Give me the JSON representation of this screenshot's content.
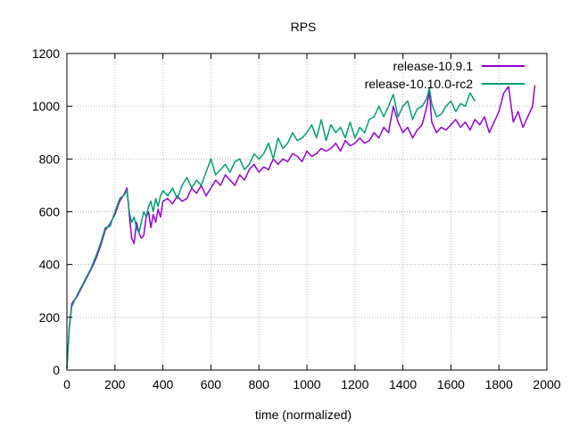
{
  "chart_data": {
    "type": "line",
    "title": "RPS",
    "xlabel": "time (normalized)",
    "ylabel": "",
    "xlim": [
      0,
      2000
    ],
    "ylim": [
      0,
      1200
    ],
    "xticks": [
      0,
      200,
      400,
      600,
      800,
      1000,
      1200,
      1400,
      1600,
      1800,
      2000
    ],
    "yticks": [
      0,
      200,
      400,
      600,
      800,
      1000,
      1200
    ],
    "grid": true,
    "legend_position": "top-right",
    "series": [
      {
        "name": "release-10.9.1",
        "color": "#9400d3",
        "x": [
          0,
          10,
          20,
          30,
          40,
          60,
          80,
          100,
          120,
          140,
          160,
          180,
          200,
          220,
          240,
          250,
          260,
          270,
          280,
          290,
          300,
          310,
          320,
          330,
          340,
          350,
          360,
          370,
          380,
          390,
          400,
          420,
          440,
          460,
          480,
          500,
          520,
          540,
          560,
          580,
          600,
          620,
          640,
          660,
          680,
          700,
          720,
          740,
          760,
          780,
          800,
          820,
          840,
          860,
          880,
          900,
          920,
          940,
          960,
          980,
          1000,
          1020,
          1040,
          1060,
          1080,
          1100,
          1120,
          1140,
          1160,
          1180,
          1200,
          1220,
          1240,
          1260,
          1280,
          1300,
          1320,
          1340,
          1360,
          1380,
          1400,
          1420,
          1440,
          1460,
          1480,
          1500,
          1510,
          1520,
          1540,
          1560,
          1580,
          1600,
          1620,
          1640,
          1660,
          1680,
          1700,
          1720,
          1740,
          1760,
          1780,
          1800,
          1820,
          1840,
          1860,
          1880,
          1900,
          1920,
          1940,
          1950
        ],
        "y": [
          10,
          160,
          250,
          265,
          275,
          310,
          345,
          380,
          420,
          470,
          530,
          555,
          590,
          640,
          670,
          690,
          590,
          500,
          480,
          560,
          520,
          500,
          510,
          580,
          600,
          540,
          590,
          560,
          610,
          580,
          640,
          650,
          630,
          660,
          640,
          650,
          690,
          670,
          700,
          660,
          690,
          720,
          700,
          740,
          720,
          700,
          740,
          720,
          760,
          780,
          750,
          770,
          760,
          800,
          780,
          800,
          790,
          820,
          810,
          790,
          830,
          810,
          820,
          840,
          830,
          840,
          860,
          830,
          870,
          850,
          860,
          880,
          860,
          870,
          900,
          880,
          920,
          900,
          1000,
          940,
          900,
          920,
          880,
          910,
          930,
          1000,
          1060,
          940,
          900,
          920,
          910,
          930,
          950,
          920,
          940,
          910,
          950,
          930,
          960,
          900,
          940,
          980,
          1050,
          1075,
          940,
          980,
          920,
          960,
          1000,
          1080
        ]
      },
      {
        "name": "release-10.10.0-rc2",
        "color": "#009e73",
        "x": [
          0,
          10,
          20,
          30,
          40,
          60,
          80,
          100,
          120,
          140,
          160,
          180,
          200,
          220,
          240,
          250,
          260,
          270,
          280,
          290,
          300,
          310,
          320,
          330,
          340,
          350,
          360,
          370,
          380,
          390,
          400,
          420,
          440,
          460,
          480,
          500,
          520,
          540,
          560,
          580,
          600,
          620,
          640,
          660,
          680,
          700,
          720,
          740,
          760,
          780,
          800,
          820,
          840,
          860,
          880,
          900,
          920,
          940,
          960,
          980,
          1000,
          1020,
          1040,
          1060,
          1080,
          1100,
          1120,
          1140,
          1160,
          1180,
          1200,
          1220,
          1240,
          1260,
          1280,
          1300,
          1320,
          1340,
          1360,
          1380,
          1400,
          1420,
          1440,
          1460,
          1480,
          1500,
          1510,
          1520,
          1540,
          1560,
          1580,
          1600,
          1620,
          1640,
          1660,
          1680,
          1700
        ],
        "y": [
          5,
          170,
          240,
          260,
          280,
          315,
          350,
          385,
          430,
          480,
          540,
          545,
          600,
          650,
          665,
          680,
          600,
          560,
          580,
          540,
          520,
          560,
          600,
          580,
          620,
          640,
          600,
          650,
          620,
          660,
          680,
          660,
          690,
          650,
          700,
          730,
          690,
          720,
          700,
          750,
          800,
          740,
          760,
          780,
          750,
          790,
          800,
          760,
          780,
          820,
          800,
          820,
          860,
          800,
          880,
          840,
          860,
          900,
          870,
          880,
          900,
          930,
          880,
          950,
          870,
          930,
          900,
          920,
          880,
          940,
          880,
          920,
          900,
          950,
          960,
          1000,
          960,
          1000,
          1045,
          960,
          1000,
          1020,
          950,
          990,
          1000,
          1030,
          1070,
          1010,
          960,
          970,
          1000,
          1020,
          980,
          1010,
          1000,
          1050,
          1020
        ]
      }
    ]
  }
}
